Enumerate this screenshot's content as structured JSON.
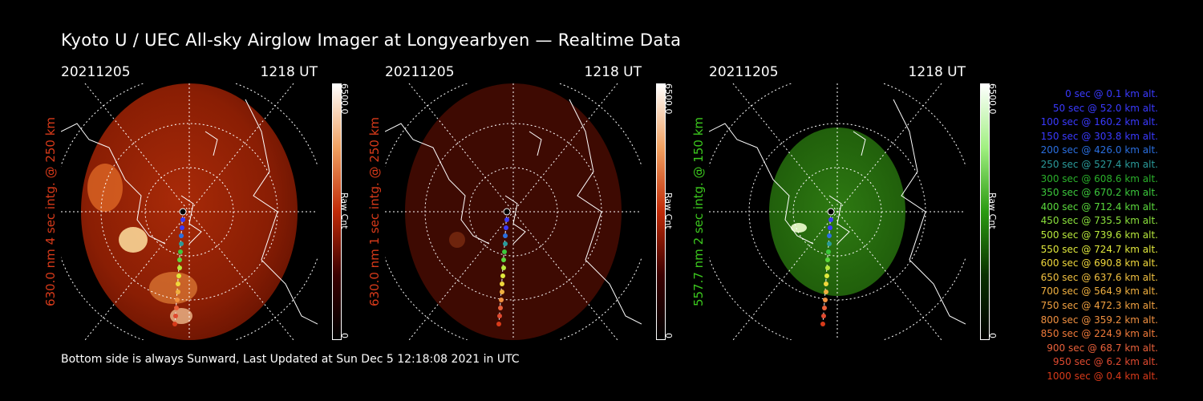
{
  "title": "Kyoto U / UEC All-sky Airglow Imager at Longyearbyen — Realtime Data",
  "footer": "Bottom side is always Sunward, Last Updated at Sun Dec  5 12:18:08 2021 in UTC",
  "panels": [
    {
      "date": "20211205",
      "time": "1218 UT",
      "label": "630.0 nm 4 sec intg. @ 250 km",
      "label_color": "#d83a1a",
      "colorbar_max": "6500.0",
      "colorbar_min": "0",
      "colorbar_unit": "Raw Cnt",
      "colormap": "red"
    },
    {
      "date": "20211205",
      "time": "1218 UT",
      "label": "630.0 nm 1 sec intg. @ 250 km",
      "label_color": "#d83a1a",
      "colorbar_max": "6500.0",
      "colorbar_min": "0",
      "colorbar_unit": "Raw Cnt",
      "colormap": "red"
    },
    {
      "date": "20211205",
      "time": "1218 UT",
      "label": "557.7 nm 2 sec intg. @ 150 km",
      "label_color": "#3cc81e",
      "colorbar_max": "6500.0",
      "colorbar_min": "0",
      "colorbar_unit": "Raw Cnt",
      "colormap": "green"
    }
  ],
  "legend": [
    {
      "text": "0 sec @    0.1 km alt.",
      "color": "#3a3aff"
    },
    {
      "text": "50 sec @   52.0 km alt.",
      "color": "#3a3aff"
    },
    {
      "text": "100 sec @  160.2 km alt.",
      "color": "#3a3aff"
    },
    {
      "text": "150 sec @  303.8 km alt.",
      "color": "#3a3aff"
    },
    {
      "text": "200 sec @  426.0 km alt.",
      "color": "#2a6fe0"
    },
    {
      "text": "250 sec @  527.4 km alt.",
      "color": "#2a9a9a"
    },
    {
      "text": "300 sec @  608.6 km alt.",
      "color": "#2ab02a"
    },
    {
      "text": "350 sec @  670.2 km alt.",
      "color": "#3cc83c"
    },
    {
      "text": "400 sec @  712.4 km alt.",
      "color": "#5ad83c"
    },
    {
      "text": "450 sec @  735.5 km alt.",
      "color": "#8ae03c"
    },
    {
      "text": "500 sec @  739.6 km alt.",
      "color": "#b8e83c"
    },
    {
      "text": "550 sec @  724.7 km alt.",
      "color": "#e0e83c"
    },
    {
      "text": "600 sec @  690.8 km alt.",
      "color": "#f0d83c"
    },
    {
      "text": "650 sec @  637.6 km alt.",
      "color": "#f0c040"
    },
    {
      "text": "700 sec @  564.9 km alt.",
      "color": "#f0b040"
    },
    {
      "text": "750 sec @  472.3 km alt.",
      "color": "#f0a040"
    },
    {
      "text": "800 sec @  359.2 km alt.",
      "color": "#f09040"
    },
    {
      "text": "850 sec @  224.9 km alt.",
      "color": "#f07a3a"
    },
    {
      "text": "900 sec @   68.7 km alt.",
      "color": "#e8603a"
    },
    {
      "text": "950 sec @    6.2 km alt.",
      "color": "#e04a30"
    },
    {
      "text": "1000 sec @    0.4 km alt.",
      "color": "#d83a1a"
    }
  ]
}
